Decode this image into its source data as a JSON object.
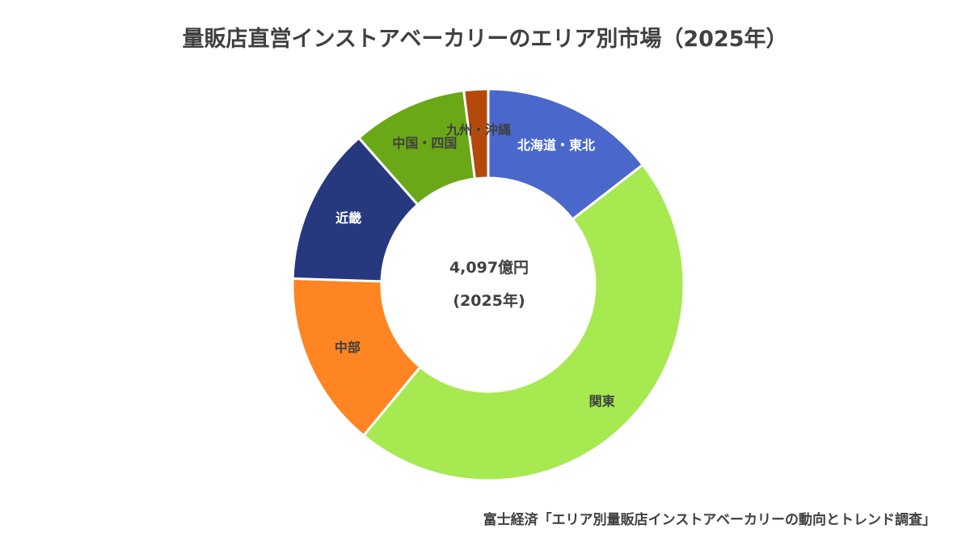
{
  "chart_data": {
    "type": "pie",
    "donut": true,
    "title": "量販店直営インストアベーカリーのエリア別市場（2025年）",
    "center_total": "4,097億円",
    "center_year": "(2025年)",
    "categories": [
      "北海道・東北",
      "関東",
      "中部",
      "近畿",
      "中国・四国",
      "九州・沖縄"
    ],
    "values": [
      14.5,
      46.5,
      14.5,
      13.0,
      9.5,
      2.0
    ],
    "colors": [
      "#4A67CC",
      "#A6E950",
      "#FF8422",
      "#27397E",
      "#6AA817",
      "#B34A0C"
    ],
    "label_colors": [
      "#ffffff",
      "#404040",
      "#404040",
      "#ffffff",
      "#404040",
      "#404040"
    ],
    "legend": "none"
  },
  "source": "富士経済「エリア別量販店インストアベーカリーの動向とトレンド調査」"
}
